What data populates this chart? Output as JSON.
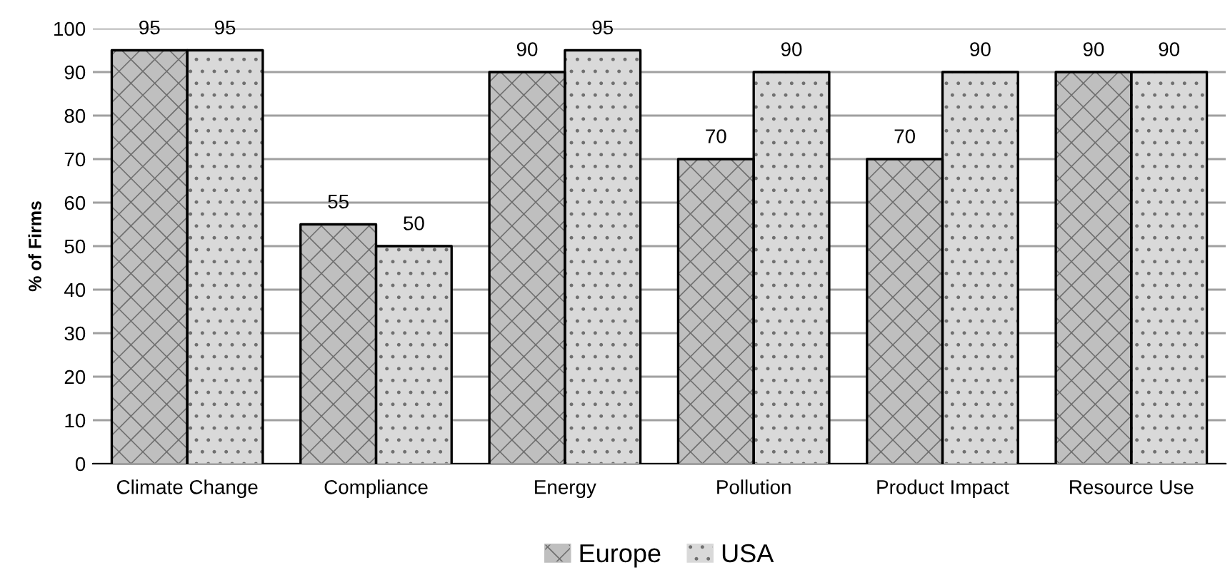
{
  "chart_data": {
    "type": "bar",
    "ylabel": "% of Firms",
    "categories": [
      "Climate Change",
      "Compliance",
      "Energy",
      "Pollution",
      "Product Impact",
      "Resource Use"
    ],
    "series": [
      {
        "name": "Europe",
        "color": "#bfbfbf",
        "values": [
          95,
          55,
          90,
          70,
          70,
          90
        ]
      },
      {
        "name": "USA",
        "color": "#d9d9d9",
        "values": [
          95,
          50,
          95,
          90,
          90,
          90
        ]
      }
    ],
    "ylim": [
      0,
      100
    ],
    "yticks": [
      0,
      10,
      20,
      30,
      40,
      50,
      60,
      70,
      80,
      90,
      100
    ],
    "grid": "y",
    "legend": "bottom",
    "data_labels": true
  }
}
